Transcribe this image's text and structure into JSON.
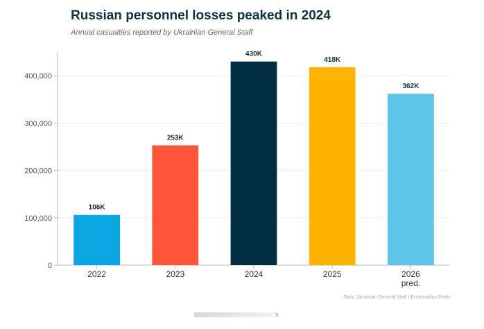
{
  "chart_data": {
    "type": "bar",
    "title": "Russian personnel losses peaked in 2024",
    "subtitle": "Annual casualties reported by Ukrainian General Staff",
    "categories": [
      "2022",
      "2023",
      "2024",
      "2025",
      "2026\npred."
    ],
    "values": [
      106000,
      253000,
      430000,
      418000,
      362000
    ],
    "data_labels": [
      "106K",
      "253K",
      "430K",
      "418K",
      "362K"
    ],
    "bar_colors": [
      "#0aa6e1",
      "#ff5639",
      "#022e42",
      "#ffb401",
      "#5ec5e8"
    ],
    "y_ticks": [
      0,
      100000,
      200000,
      300000,
      400000
    ],
    "y_tick_labels": [
      "0",
      "100,000",
      "200,000",
      "300,000",
      "400,000"
    ],
    "ylim": [
      0,
      450000
    ],
    "xlabel": "",
    "ylabel": "",
    "grid": true,
    "source": "Data: Ukrainian General Staff / Euromaidan Press"
  },
  "footer": {
    "scroll_letter": "s"
  },
  "colors": {
    "title": "#10303f",
    "label": "#10303f",
    "tick": "#555555",
    "grid": "#eeeeee",
    "axis": "#bbbbbb"
  }
}
